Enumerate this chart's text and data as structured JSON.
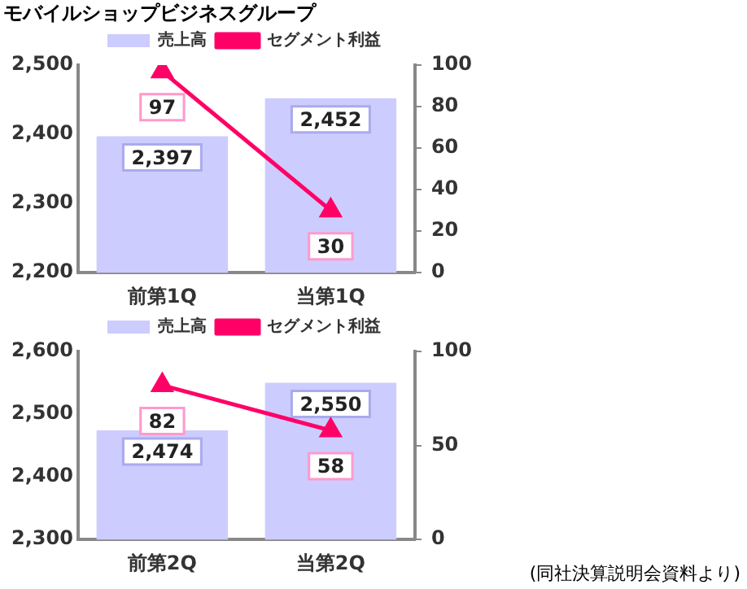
{
  "chart_data": [
    {
      "type": "bar",
      "title": "モバイルショップビジネスグループ",
      "categories": [
        "前第1Q",
        "当第1Q"
      ],
      "series": [
        {
          "name": "売上高",
          "color": "#ccccff",
          "values": [
            2397,
            2452
          ],
          "value_labels": [
            "2,397",
            "2,452"
          ]
        },
        {
          "name": "セグメント利益",
          "type": "line",
          "axis": "y2",
          "color": "#ff0066",
          "values": [
            97,
            30
          ],
          "value_labels": [
            "97",
            "30"
          ]
        }
      ],
      "ylim": [
        2200,
        2500
      ],
      "yticks": [
        {
          "value": 2200,
          "label": "2,200"
        },
        {
          "value": 2300,
          "label": "2,300"
        },
        {
          "value": 2400,
          "label": "2,400"
        },
        {
          "value": 2500,
          "label": "2,500"
        }
      ],
      "y2lim": [
        0,
        100
      ],
      "y2ticks": [
        0,
        20,
        40,
        60,
        80,
        100
      ],
      "grid": false,
      "legend": "top",
      "marker": "triangle",
      "line_style": "solid"
    },
    {
      "type": "bar",
      "categories": [
        "前第2Q",
        "当第2Q"
      ],
      "series": [
        {
          "name": "売上高",
          "color": "#ccccff",
          "values": [
            2474,
            2550
          ],
          "value_labels": [
            "2,474",
            "2,550"
          ]
        },
        {
          "name": "セグメント利益",
          "type": "line",
          "axis": "y2",
          "color": "#ff0066",
          "values": [
            82,
            58
          ],
          "value_labels": [
            "82",
            "58"
          ]
        }
      ],
      "ylim": [
        2300,
        2600
      ],
      "yticks": [
        {
          "value": 2300,
          "label": "2,300"
        },
        {
          "value": 2400,
          "label": "2,400"
        },
        {
          "value": 2500,
          "label": "2,500"
        },
        {
          "value": 2600,
          "label": "2,600"
        }
      ],
      "y2lim": [
        0,
        100
      ],
      "y2ticks": [
        0,
        50,
        100
      ],
      "grid": false,
      "legend": "top",
      "marker": "triangle",
      "line_style": "solid",
      "annotations": [
        "(同社決算説明会資料より)"
      ]
    }
  ]
}
